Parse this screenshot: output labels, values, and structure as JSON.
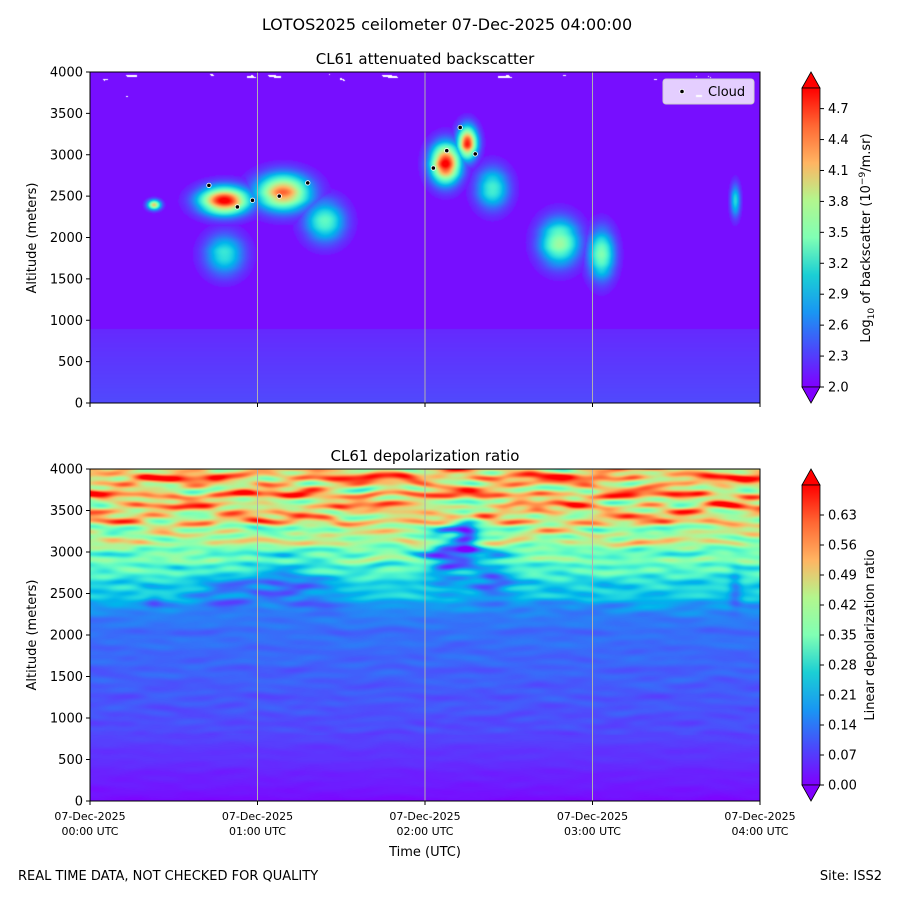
{
  "figure_title": "LOTOS2025 ceilometer 07-Dec-2025 04:00:00",
  "footer": {
    "left_text": "REAL TIME DATA, NOT CHECKED FOR QUALITY",
    "right_text": "Site: ISS2"
  },
  "x_axis": {
    "label": "Time (UTC)",
    "range_hours": [
      0,
      4
    ],
    "ticks": [
      {
        "hours": 0,
        "line1": "07-Dec-2025",
        "line2": "00:00 UTC"
      },
      {
        "hours": 1,
        "line1": "07-Dec-2025",
        "line2": "01:00 UTC"
      },
      {
        "hours": 2,
        "line1": "07-Dec-2025",
        "line2": "02:00 UTC"
      },
      {
        "hours": 3,
        "line1": "07-Dec-2025",
        "line2": "03:00 UTC"
      },
      {
        "hours": 4,
        "line1": "07-Dec-2025",
        "line2": "04:00 UTC"
      }
    ]
  },
  "colors": {
    "background_low": "#6a2dfb",
    "grid_line": "#b0b0b0",
    "cloud_marker": "#000000"
  },
  "chart_data": [
    {
      "type": "heatmap",
      "title": "CL61 attenuated backscatter",
      "ylabel": "Altitude (meters)",
      "ylim": [
        0,
        4000
      ],
      "yticks": [
        "0",
        "500",
        "1000",
        "1500",
        "2000",
        "2500",
        "3000",
        "3500",
        "4000"
      ],
      "colorbar": {
        "label_prefix": "Log",
        "label_sub": "10",
        "label_middle": " of backscatter (10",
        "label_sup": "−9",
        "label_suffix": "/m.sr)",
        "range": [
          2.0,
          4.9
        ],
        "ticks": [
          "2.0",
          "2.3",
          "2.6",
          "2.9",
          "3.2",
          "3.5",
          "3.8",
          "4.1",
          "4.4",
          "4.7"
        ]
      },
      "legend": {
        "label": "Cloud",
        "placement": "top-right"
      },
      "cloud_points": [
        {
          "t": 0.71,
          "alt": 2630
        },
        {
          "t": 0.88,
          "alt": 2370
        },
        {
          "t": 0.97,
          "alt": 2450
        },
        {
          "t": 1.13,
          "alt": 2500
        },
        {
          "t": 1.3,
          "alt": 2660
        },
        {
          "t": 2.05,
          "alt": 2840
        },
        {
          "t": 2.13,
          "alt": 3050
        },
        {
          "t": 2.21,
          "alt": 3330
        },
        {
          "t": 2.3,
          "alt": 3010
        }
      ],
      "features": [
        {
          "kind": "cloud",
          "t": 0.8,
          "alt": 2450,
          "st": 0.15,
          "sa": 170,
          "peak": 4.85
        },
        {
          "kind": "cloud",
          "t": 1.15,
          "alt": 2550,
          "st": 0.16,
          "sa": 220,
          "peak": 4.4
        },
        {
          "kind": "cloud",
          "t": 0.38,
          "alt": 2400,
          "st": 0.04,
          "sa": 60,
          "peak": 4.0
        },
        {
          "kind": "cloud",
          "t": 2.12,
          "alt": 2900,
          "st": 0.09,
          "sa": 240,
          "peak": 4.9
        },
        {
          "kind": "cloud",
          "t": 2.25,
          "alt": 3150,
          "st": 0.06,
          "sa": 200,
          "peak": 4.7
        },
        {
          "kind": "cloud",
          "t": 2.4,
          "alt": 2600,
          "st": 0.1,
          "sa": 250,
          "peak": 3.1
        },
        {
          "kind": "cloud",
          "t": 1.4,
          "alt": 2200,
          "st": 0.12,
          "sa": 250,
          "peak": 3.2
        },
        {
          "kind": "cloud",
          "t": 2.8,
          "alt": 1950,
          "st": 0.12,
          "sa": 280,
          "peak": 3.55
        },
        {
          "kind": "cloud",
          "t": 3.05,
          "alt": 1800,
          "st": 0.08,
          "sa": 300,
          "peak": 3.4
        },
        {
          "kind": "cloud",
          "t": 0.8,
          "alt": 1800,
          "st": 0.12,
          "sa": 250,
          "peak": 3.0
        },
        {
          "kind": "cloud",
          "t": 3.85,
          "alt": 2450,
          "st": 0.03,
          "sa": 200,
          "peak": 2.9
        }
      ],
      "missing_data_band": {
        "alt_min": 3700,
        "alt_max": 4000,
        "color": "#ffffff"
      }
    },
    {
      "type": "heatmap",
      "title": "CL61 depolarization ratio",
      "ylabel": "Altitude (meters)",
      "ylim": [
        0,
        4000
      ],
      "yticks": [
        "0",
        "500",
        "1000",
        "1500",
        "2000",
        "2500",
        "3000",
        "3500",
        "4000"
      ],
      "colorbar": {
        "label": "Linear depolarization ratio",
        "range": [
          0.0,
          0.7
        ],
        "ticks": [
          "0.00",
          "0.07",
          "0.14",
          "0.21",
          "0.28",
          "0.35",
          "0.42",
          "0.49",
          "0.56",
          "0.63"
        ]
      },
      "noise_start_alt": 2200,
      "noise_full_alt": 3500,
      "noise_peak": 0.48
    }
  ]
}
